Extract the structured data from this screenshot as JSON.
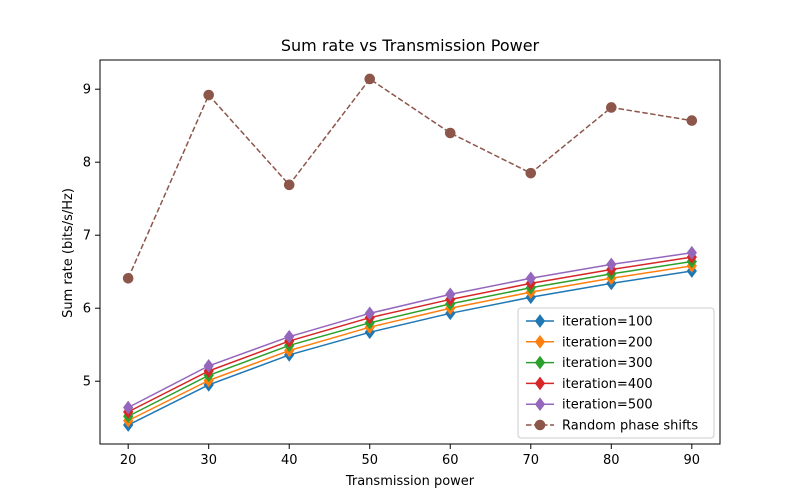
{
  "chart_data": {
    "type": "line",
    "title": "Sum rate vs Transmission Power",
    "xlabel": "Transmission power",
    "ylabel": "Sum rate (bits/s/Hz)",
    "x": [
      20,
      30,
      40,
      50,
      60,
      70,
      80,
      90
    ],
    "xlim": [
      16.5,
      93.5
    ],
    "ylim": [
      4.14,
      9.4
    ],
    "xticks": [
      20,
      30,
      40,
      50,
      60,
      70,
      80,
      90
    ],
    "yticks": [
      5,
      6,
      7,
      8,
      9
    ],
    "grid": false,
    "legend_position": "bottom-right",
    "series": [
      {
        "name": "iteration=100",
        "color": "#1f77b4",
        "marker": "diamond",
        "linestyle": "solid",
        "values": [
          4.4,
          4.95,
          5.36,
          5.67,
          5.93,
          6.15,
          6.34,
          6.51
        ]
      },
      {
        "name": "iteration=200",
        "color": "#ff7f0e",
        "marker": "diamond",
        "linestyle": "solid",
        "values": [
          4.46,
          5.01,
          5.42,
          5.74,
          6.0,
          6.22,
          6.41,
          6.58
        ]
      },
      {
        "name": "iteration=300",
        "color": "#2ca02c",
        "marker": "diamond",
        "linestyle": "solid",
        "values": [
          4.52,
          5.08,
          5.49,
          5.8,
          6.06,
          6.28,
          6.47,
          6.64
        ]
      },
      {
        "name": "iteration=400",
        "color": "#d62728",
        "marker": "diamond",
        "linestyle": "solid",
        "values": [
          4.58,
          5.14,
          5.55,
          5.87,
          6.12,
          6.34,
          6.53,
          6.7
        ]
      },
      {
        "name": "iteration=500",
        "color": "#9467bd",
        "marker": "diamond",
        "linestyle": "solid",
        "values": [
          4.64,
          5.21,
          5.61,
          5.93,
          6.19,
          6.41,
          6.6,
          6.76
        ]
      },
      {
        "name": "Random phase shifts",
        "color": "#8c564b",
        "marker": "circle",
        "linestyle": "dashed",
        "values": [
          6.41,
          8.92,
          7.69,
          9.14,
          8.4,
          7.85,
          8.75,
          8.57
        ]
      }
    ]
  }
}
